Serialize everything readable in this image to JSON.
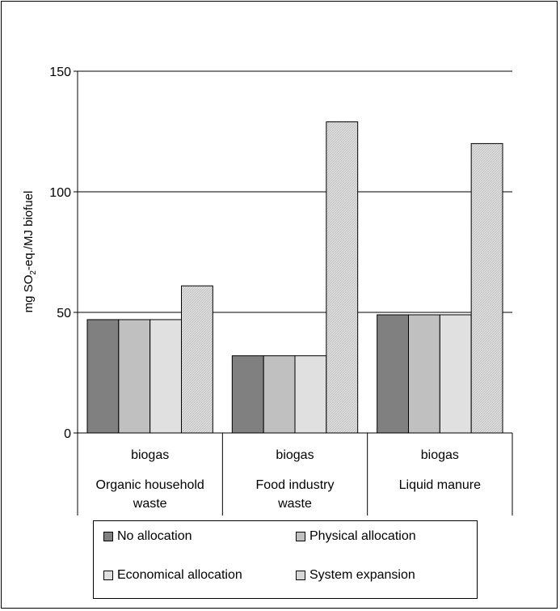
{
  "chart_data": {
    "type": "bar",
    "title": "",
    "ylabel_main": "mg SO",
    "ylabel_sub": "2",
    "ylabel_rest": "-eq./MJ biofuel",
    "ylim": [
      0,
      150
    ],
    "yticks": [
      0,
      50,
      100,
      150
    ],
    "grid": true,
    "categories": [
      {
        "line1": "biogas",
        "line2": "Organic household",
        "line3": "waste"
      },
      {
        "line1": "biogas",
        "line2": "Food industry",
        "line3": "waste"
      },
      {
        "line1": "biogas",
        "line2": "Liquid manure",
        "line3": ""
      }
    ],
    "series": [
      {
        "name": "No allocation",
        "color": "#808080",
        "values": [
          47,
          32,
          49
        ]
      },
      {
        "name": "Physical allocation",
        "color": "#c0c0c0",
        "values": [
          47,
          32,
          49
        ]
      },
      {
        "name": "Economical allocation",
        "color": "#e0e0e0",
        "values": [
          47,
          32,
          49
        ]
      },
      {
        "name": "System expansion",
        "color": "#d6d6d6",
        "values": [
          61,
          129,
          120
        ]
      }
    ],
    "legend_position": "bottom"
  }
}
